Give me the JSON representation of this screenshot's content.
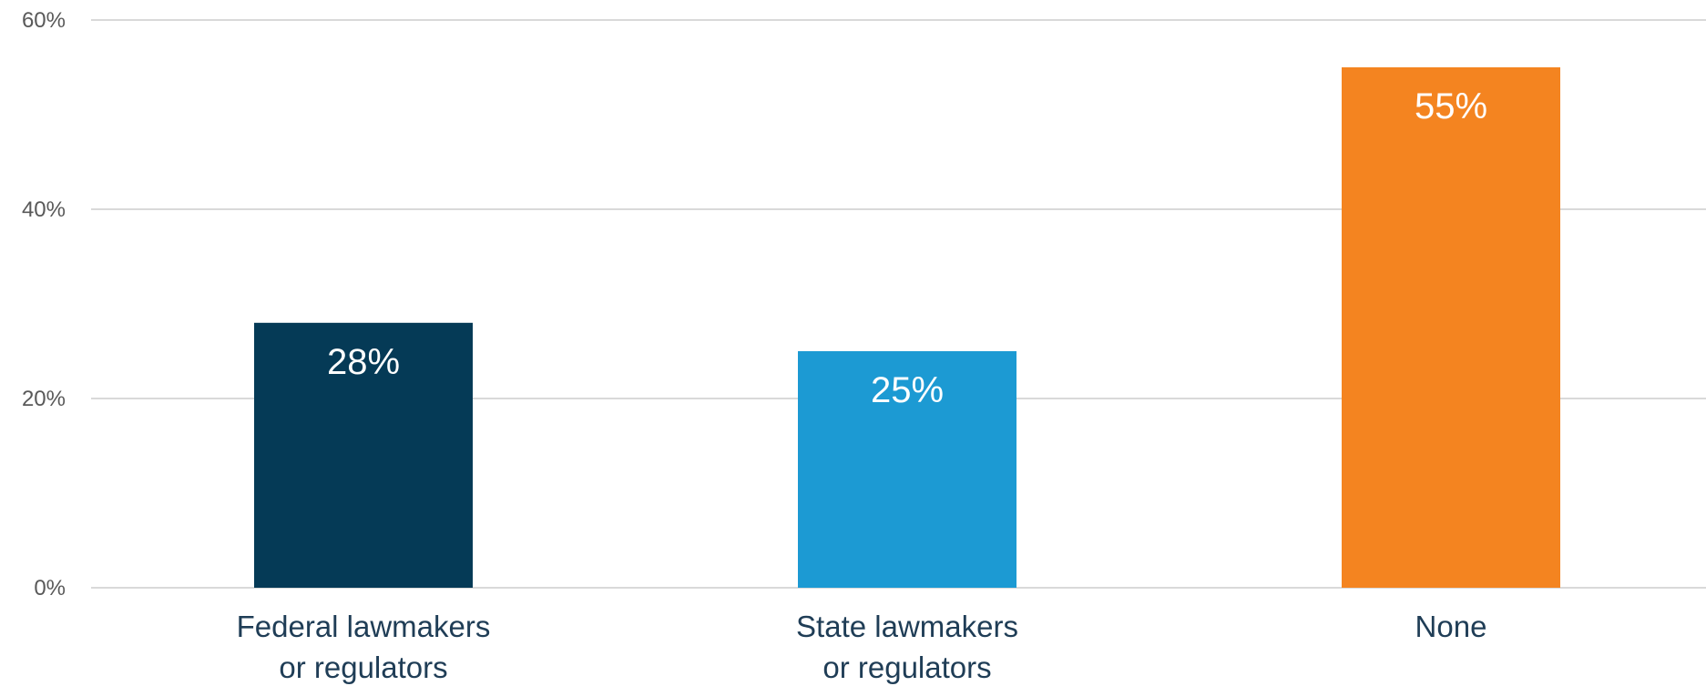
{
  "chart_data": {
    "type": "bar",
    "title": "",
    "xlabel": "",
    "ylabel": "",
    "categories": [
      [
        "Federal lawmakers",
        "or regulators"
      ],
      [
        "State lawmakers",
        "or regulators"
      ],
      [
        "None"
      ]
    ],
    "values": [
      28,
      25,
      55
    ],
    "value_labels": [
      "28%",
      "25%",
      "55%"
    ],
    "colors": [
      "#053a56",
      "#1c9ad3",
      "#f48420"
    ],
    "ylim": [
      0,
      60
    ],
    "yticks": [
      0,
      20,
      40,
      60
    ],
    "ytick_labels": [
      "0%",
      "20%",
      "40%",
      "60%"
    ],
    "grid": true,
    "legend": "none"
  }
}
